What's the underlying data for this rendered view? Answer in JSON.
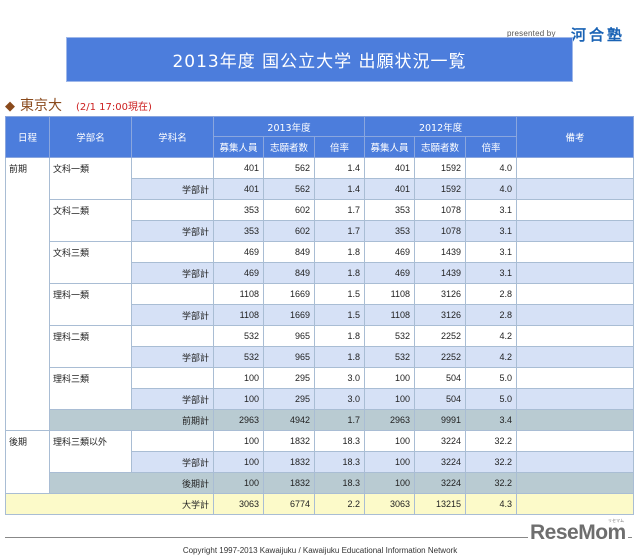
{
  "header": {
    "presented_by": "presented by",
    "sponsor_logo": "河合塾",
    "title": "2013年度  国公立大学  出願状況一覧"
  },
  "university": {
    "marker_icon": "diamond-icon",
    "name": "東京大",
    "as_of": "(2/1 17:00現在)"
  },
  "table": {
    "headers": {
      "schedule": "日程",
      "faculty": "学部名",
      "department": "学科名",
      "year_2013": "2013年度",
      "year_2012": "2012年度",
      "notes": "備考",
      "capacity": "募集人員",
      "applicants": "志願者数",
      "ratio": "倍率"
    },
    "periods": [
      {
        "name": "前期",
        "faculties": [
          {
            "name": "文科一類",
            "row": [
              "401",
              "562",
              "1.4",
              "401",
              "1592",
              "4.0"
            ],
            "subtotal_label": "学部計",
            "subtotal": [
              "401",
              "562",
              "1.4",
              "401",
              "1592",
              "4.0"
            ]
          },
          {
            "name": "文科二類",
            "row": [
              "353",
              "602",
              "1.7",
              "353",
              "1078",
              "3.1"
            ],
            "subtotal_label": "学部計",
            "subtotal": [
              "353",
              "602",
              "1.7",
              "353",
              "1078",
              "3.1"
            ]
          },
          {
            "name": "文科三類",
            "row": [
              "469",
              "849",
              "1.8",
              "469",
              "1439",
              "3.1"
            ],
            "subtotal_label": "学部計",
            "subtotal": [
              "469",
              "849",
              "1.8",
              "469",
              "1439",
              "3.1"
            ]
          },
          {
            "name": "理科一類",
            "row": [
              "1108",
              "1669",
              "1.5",
              "1108",
              "3126",
              "2.8"
            ],
            "subtotal_label": "学部計",
            "subtotal": [
              "1108",
              "1669",
              "1.5",
              "1108",
              "3126",
              "2.8"
            ]
          },
          {
            "name": "理科二類",
            "row": [
              "532",
              "965",
              "1.8",
              "532",
              "2252",
              "4.2"
            ],
            "subtotal_label": "学部計",
            "subtotal": [
              "532",
              "965",
              "1.8",
              "532",
              "2252",
              "4.2"
            ]
          },
          {
            "name": "理科三類",
            "row": [
              "100",
              "295",
              "3.0",
              "100",
              "504",
              "5.0"
            ],
            "subtotal_label": "学部計",
            "subtotal": [
              "100",
              "295",
              "3.0",
              "100",
              "504",
              "5.0"
            ]
          }
        ],
        "total_label": "前期計",
        "total": [
          "2963",
          "4942",
          "1.7",
          "2963",
          "9991",
          "3.4"
        ]
      },
      {
        "name": "後期",
        "faculties": [
          {
            "name": "理科三類以外",
            "row": [
              "100",
              "1832",
              "18.3",
              "100",
              "3224",
              "32.2"
            ],
            "subtotal_label": "学部計",
            "subtotal": [
              "100",
              "1832",
              "18.3",
              "100",
              "3224",
              "32.2"
            ]
          }
        ],
        "total_label": "後期計",
        "total": [
          "100",
          "1832",
          "18.3",
          "100",
          "3224",
          "32.2"
        ]
      }
    ],
    "grand_total_label": "大学計",
    "grand_total": [
      "3063",
      "6774",
      "2.2",
      "3063",
      "13215",
      "4.3"
    ]
  },
  "footer": {
    "logo": "ReseMom",
    "logo_ruby": "リセマム",
    "copyright": "Copyright 1997-2013 Kawaijuku / Kawaijuku Educational Information Network"
  },
  "colors": {
    "header_blue": "#4c7ddc",
    "subtotal_blue": "#d6e1f6",
    "period_total": "#b9cbd2",
    "grand_total": "#fcfac9",
    "university_brown": "#8a4a1c",
    "timestamp_red": "#cc2020",
    "sponsor_blue": "#1a63b5"
  }
}
